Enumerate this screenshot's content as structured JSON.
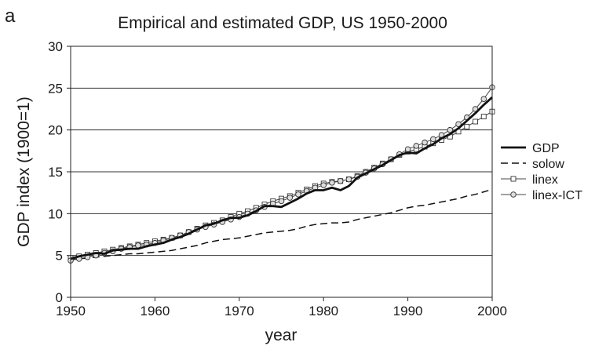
{
  "panel_label": "a",
  "chart_data": {
    "type": "line",
    "title": "Empirical and estimated GDP, US 1950-2000",
    "xlabel": "year",
    "ylabel": "GDP index (1900=1)",
    "xlim": [
      1950,
      2000
    ],
    "ylim": [
      0,
      30
    ],
    "xticks": [
      1950,
      1960,
      1970,
      1980,
      1990,
      2000
    ],
    "yticks": [
      0,
      5,
      10,
      15,
      20,
      25,
      30
    ],
    "grid": "horizontal",
    "legend_position": "right",
    "x": [
      1950,
      1951,
      1952,
      1953,
      1954,
      1955,
      1956,
      1957,
      1958,
      1959,
      1960,
      1961,
      1962,
      1963,
      1964,
      1965,
      1966,
      1967,
      1968,
      1969,
      1970,
      1971,
      1972,
      1973,
      1974,
      1975,
      1976,
      1977,
      1978,
      1979,
      1980,
      1981,
      1982,
      1983,
      1984,
      1985,
      1986,
      1987,
      1988,
      1989,
      1990,
      1991,
      1992,
      1993,
      1994,
      1995,
      1996,
      1997,
      1998,
      1999,
      2000
    ],
    "series": [
      {
        "name": "GDP",
        "style": "solid-thick",
        "values": [
          4.6,
          4.9,
          5.1,
          5.3,
          5.2,
          5.6,
          5.7,
          5.8,
          5.8,
          6.1,
          6.3,
          6.5,
          6.9,
          7.2,
          7.6,
          8.1,
          8.6,
          8.8,
          9.2,
          9.5,
          9.5,
          9.8,
          10.3,
          10.9,
          10.9,
          10.8,
          11.3,
          11.8,
          12.4,
          12.8,
          12.8,
          13.1,
          12.8,
          13.3,
          14.3,
          14.8,
          15.3,
          15.8,
          16.4,
          17.0,
          17.3,
          17.2,
          17.8,
          18.3,
          19.0,
          19.5,
          20.2,
          21.1,
          22.0,
          23.0,
          23.9
        ]
      },
      {
        "name": "solow",
        "style": "dashed",
        "values": [
          4.5,
          4.6,
          4.7,
          4.8,
          4.9,
          5.0,
          5.1,
          5.2,
          5.2,
          5.3,
          5.4,
          5.5,
          5.6,
          5.8,
          6.0,
          6.2,
          6.5,
          6.7,
          6.9,
          7.0,
          7.1,
          7.3,
          7.5,
          7.7,
          7.8,
          7.9,
          8.0,
          8.2,
          8.5,
          8.7,
          8.8,
          8.9,
          8.9,
          9.0,
          9.3,
          9.5,
          9.7,
          9.9,
          10.1,
          10.4,
          10.7,
          10.9,
          11.0,
          11.2,
          11.4,
          11.6,
          11.8,
          12.1,
          12.3,
          12.6,
          12.9
        ]
      },
      {
        "name": "linex",
        "style": "line-square",
        "values": [
          4.7,
          4.9,
          5.1,
          5.3,
          5.5,
          5.7,
          5.9,
          6.1,
          6.3,
          6.5,
          6.7,
          6.9,
          7.1,
          7.4,
          7.8,
          8.2,
          8.6,
          8.9,
          9.2,
          9.6,
          10.0,
          10.3,
          10.7,
          11.1,
          11.5,
          11.8,
          12.1,
          12.5,
          12.9,
          13.3,
          13.6,
          13.8,
          13.9,
          14.1,
          14.5,
          15.0,
          15.5,
          16.0,
          16.5,
          17.0,
          17.4,
          17.7,
          18.0,
          18.4,
          18.8,
          19.2,
          19.8,
          20.4,
          21.0,
          21.6,
          22.2
        ]
      },
      {
        "name": "linex-ICT",
        "style": "line-circle",
        "values": [
          4.4,
          4.6,
          4.8,
          5.0,
          5.3,
          5.5,
          5.8,
          6.0,
          6.2,
          6.3,
          6.5,
          6.8,
          7.1,
          7.4,
          7.8,
          8.1,
          8.4,
          8.7,
          9.0,
          9.3,
          9.6,
          10.0,
          10.4,
          10.8,
          11.2,
          11.5,
          11.9,
          12.3,
          12.7,
          13.1,
          13.4,
          13.7,
          13.9,
          14.1,
          14.4,
          14.9,
          15.4,
          15.9,
          16.5,
          17.1,
          17.7,
          18.1,
          18.5,
          18.9,
          19.4,
          20.0,
          20.7,
          21.5,
          22.5,
          23.7,
          25.1
        ]
      }
    ]
  }
}
